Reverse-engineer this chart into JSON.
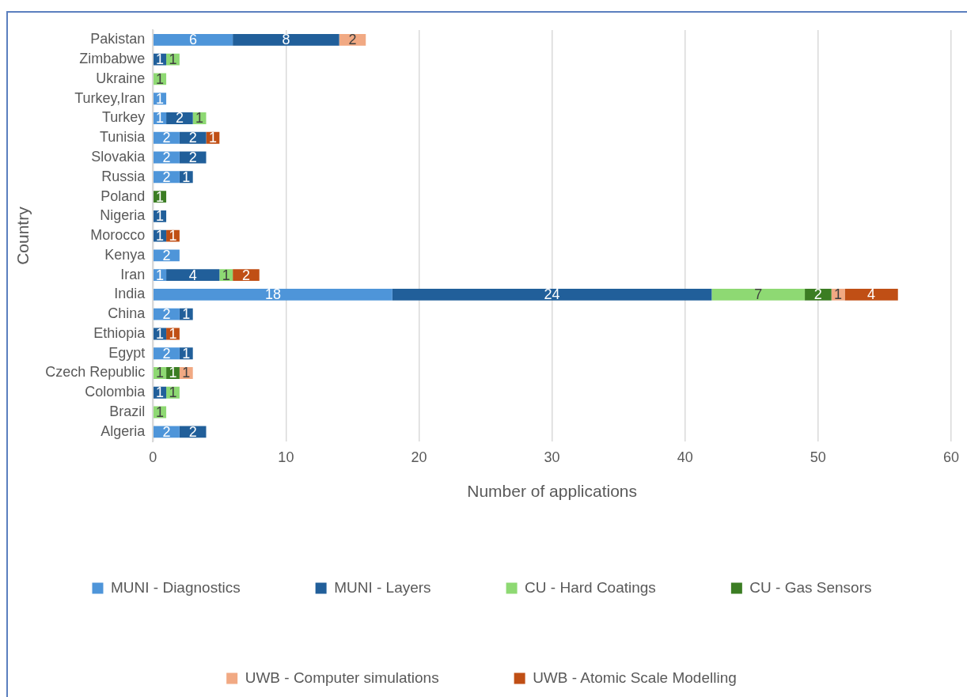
{
  "chart_data": {
    "type": "bar",
    "orientation": "horizontal",
    "stacked": true,
    "data_labels": true,
    "grid": "x",
    "legend": "bottom",
    "xlabel": "Number of applications",
    "ylabel": "Country",
    "categories": [
      "Pakistan",
      "Zimbabwe",
      "Ukraine",
      "Turkey,Iran",
      "Turkey",
      "Tunisia",
      "Slovakia",
      "Russia",
      "Poland",
      "Nigeria",
      "Morocco",
      "Kenya",
      "Iran",
      "India",
      "China",
      "Ethiopia",
      "Egypt",
      "Czech Republic",
      "Colombia",
      "Brazil",
      "Algeria"
    ],
    "xlim": [
      0,
      60
    ],
    "xticks": [
      0,
      10,
      20,
      30,
      40,
      50,
      60
    ],
    "series": [
      {
        "name": "MUNI - Diagnostics",
        "color": "#4e95d9",
        "values": [
          6,
          null,
          null,
          1,
          1,
          2,
          2,
          2,
          null,
          null,
          null,
          2,
          1,
          18,
          2,
          null,
          2,
          null,
          null,
          null,
          2
        ]
      },
      {
        "name": "MUNI - Layers",
        "color": "#215f9a",
        "values": [
          8,
          1,
          null,
          null,
          2,
          2,
          2,
          1,
          null,
          1,
          1,
          null,
          4,
          24,
          1,
          1,
          1,
          null,
          1,
          null,
          2
        ]
      },
      {
        "name": "CU - Hard Coatings",
        "color": "#8ed973",
        "values": [
          null,
          1,
          1,
          null,
          1,
          null,
          null,
          null,
          null,
          null,
          null,
          null,
          1,
          7,
          null,
          null,
          null,
          1,
          1,
          1,
          null
        ]
      },
      {
        "name": "CU - Gas Sensors",
        "color": "#3b7d23",
        "values": [
          null,
          null,
          null,
          null,
          null,
          null,
          null,
          null,
          1,
          null,
          null,
          null,
          null,
          2,
          null,
          null,
          null,
          1,
          null,
          null,
          null
        ]
      },
      {
        "name": "UWB - Computer simulations",
        "color": "#f1a983",
        "values": [
          2,
          null,
          null,
          null,
          null,
          null,
          null,
          null,
          null,
          null,
          null,
          null,
          null,
          1,
          null,
          null,
          null,
          1,
          null,
          null,
          null
        ]
      },
      {
        "name": "UWB - Atomic Scale Modelling",
        "color": "#c04f15",
        "values": [
          null,
          null,
          null,
          null,
          null,
          1,
          null,
          null,
          null,
          null,
          1,
          null,
          2,
          4,
          null,
          1,
          null,
          null,
          null,
          null,
          null
        ]
      }
    ]
  }
}
